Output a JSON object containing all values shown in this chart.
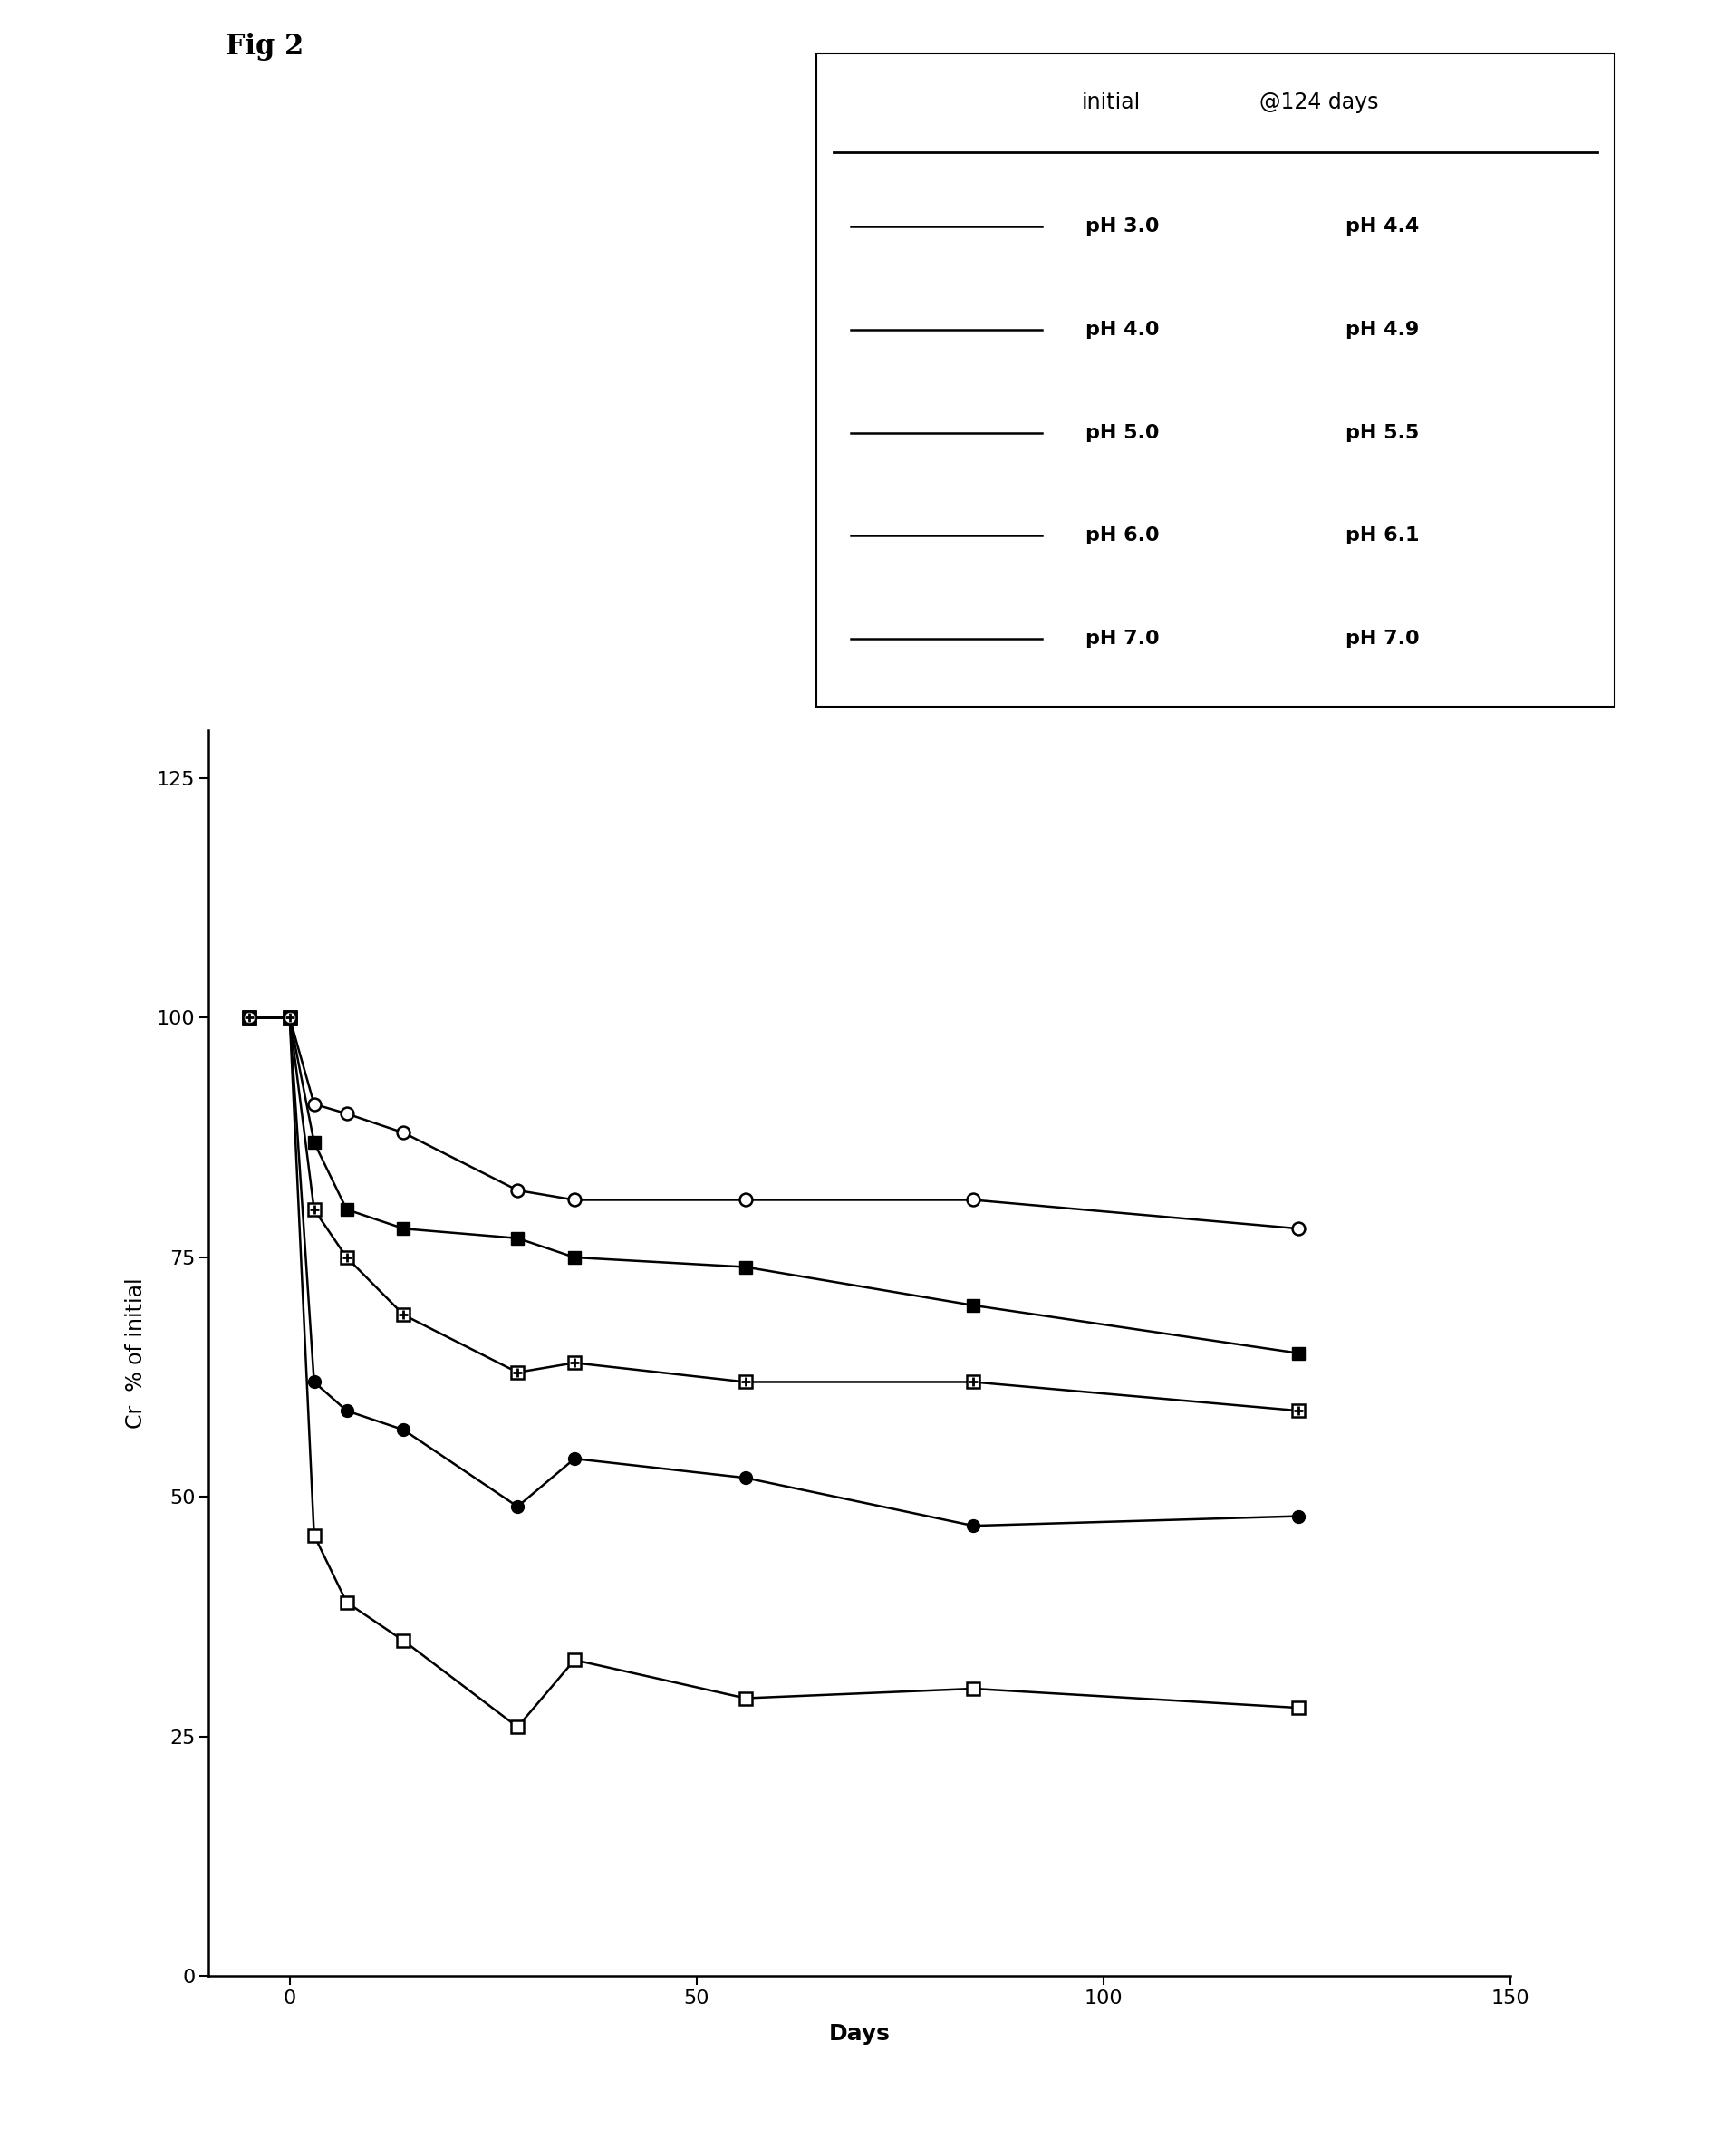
{
  "title": "Fig 2",
  "ylabel": "Cr  % of initial",
  "xlabel": "Days",
  "xlim": [
    -10,
    150
  ],
  "ylim": [
    0,
    130
  ],
  "xticks": [
    0,
    50,
    100,
    150
  ],
  "yticks": [
    0,
    25,
    50,
    75,
    100,
    125
  ],
  "legend_header_col1": "initial",
  "legend_header_col2": "@124 days",
  "series": [
    {
      "label_initial": "pH 3.0",
      "label_end": "pH 4.4",
      "marker": "square_open",
      "x": [
        -5,
        0,
        3,
        7,
        14,
        28,
        35,
        56,
        84,
        124
      ],
      "y": [
        100,
        100,
        46,
        39,
        35,
        26,
        33,
        29,
        30,
        28
      ]
    },
    {
      "label_initial": "pH 4.0",
      "label_end": "pH 4.9",
      "marker": "circle_filled",
      "x": [
        -5,
        0,
        3,
        7,
        14,
        28,
        35,
        56,
        84,
        124
      ],
      "y": [
        100,
        100,
        62,
        59,
        57,
        49,
        54,
        52,
        47,
        48
      ]
    },
    {
      "label_initial": "pH 5.0",
      "label_end": "pH 5.5",
      "marker": "square_cross",
      "x": [
        -5,
        0,
        3,
        7,
        14,
        28,
        35,
        56,
        84,
        124
      ],
      "y": [
        100,
        100,
        80,
        75,
        69,
        63,
        64,
        62,
        62,
        59
      ]
    },
    {
      "label_initial": "pH 6.0",
      "label_end": "pH 6.1",
      "marker": "square_filled",
      "x": [
        -5,
        0,
        3,
        7,
        14,
        28,
        35,
        56,
        84,
        124
      ],
      "y": [
        100,
        100,
        87,
        80,
        78,
        77,
        75,
        74,
        70,
        65
      ]
    },
    {
      "label_initial": "pH 7.0",
      "label_end": "pH 7.0",
      "marker": "circle_open",
      "x": [
        -5,
        0,
        3,
        7,
        14,
        28,
        35,
        56,
        84,
        124
      ],
      "y": [
        100,
        100,
        91,
        90,
        88,
        82,
        81,
        81,
        81,
        78
      ]
    }
  ],
  "linewidth": 1.8,
  "markersize": 10,
  "background_color": "white",
  "fontsize_title": 22,
  "fontsize_ylabel": 17,
  "fontsize_xlabel": 18,
  "fontsize_ticks": 16,
  "fontsize_legend": 16,
  "fontsize_legend_header": 17
}
